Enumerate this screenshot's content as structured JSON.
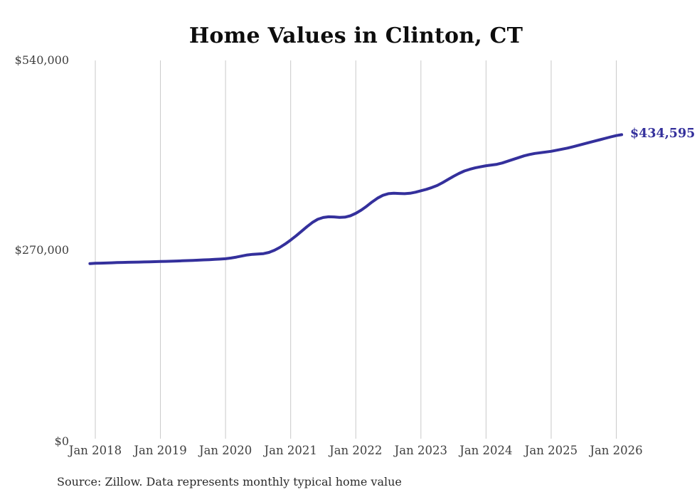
{
  "page": {
    "title": "Home Values in Clinton, CT",
    "source_note": "Source: Zillow. Data represents monthly typical home value"
  },
  "chart_data": {
    "type": "line",
    "title": "Home Values in Clinton, CT",
    "xlabel": "",
    "ylabel": "",
    "ylim": [
      0,
      540000
    ],
    "grid": "vertical-only",
    "legend": "none",
    "y_ticks": [
      {
        "label": "$0",
        "value": 0
      },
      {
        "label": "$270,000",
        "value": 270000
      },
      {
        "label": "$540,000",
        "value": 540000
      }
    ],
    "x_tick_labels": [
      "Jan 2018",
      "Jan 2019",
      "Jan 2020",
      "Jan 2021",
      "Jan 2022",
      "Jan 2023",
      "Jan 2024",
      "Jan 2025",
      "Jan 2026"
    ],
    "end_label": "$434,595",
    "final_value": 434595,
    "colors": {
      "line": "#34309c",
      "end_label": "#34309c",
      "grid": "#c9c9c9",
      "title": "#0d0d0d",
      "tick_text": "#3f3f3f",
      "source_text": "#2b2b2b",
      "background": "#ffffff"
    },
    "series": [
      {
        "name": "Typical home value",
        "interval": "monthly",
        "start": "Dec 2017",
        "end": "Feb 2026",
        "values": [
          251500,
          252000,
          252200,
          252400,
          252700,
          253000,
          253200,
          253400,
          253600,
          253800,
          254000,
          254200,
          254400,
          254600,
          254800,
          255000,
          255300,
          255600,
          255900,
          256200,
          256500,
          256900,
          257200,
          257600,
          258000,
          258500,
          259500,
          260800,
          262300,
          263800,
          264800,
          265300,
          265800,
          267500,
          270500,
          274500,
          279500,
          285000,
          291000,
          297500,
          304000,
          310000,
          314500,
          317000,
          318000,
          317800,
          317200,
          317500,
          319500,
          323000,
          327500,
          333000,
          339000,
          344500,
          348500,
          350800,
          351500,
          351200,
          350800,
          351500,
          353000,
          355000,
          357000,
          359500,
          362500,
          366500,
          371000,
          375500,
          379500,
          383000,
          385500,
          387500,
          389000,
          390500,
          391500,
          392500,
          394500,
          397000,
          399500,
          402000,
          404500,
          406500,
          408000,
          409000,
          410000,
          411000,
          412500,
          414000,
          415500,
          417500,
          419500,
          421500,
          423500,
          425500,
          427500,
          429500,
          431500,
          433300,
          434595
        ]
      }
    ]
  }
}
